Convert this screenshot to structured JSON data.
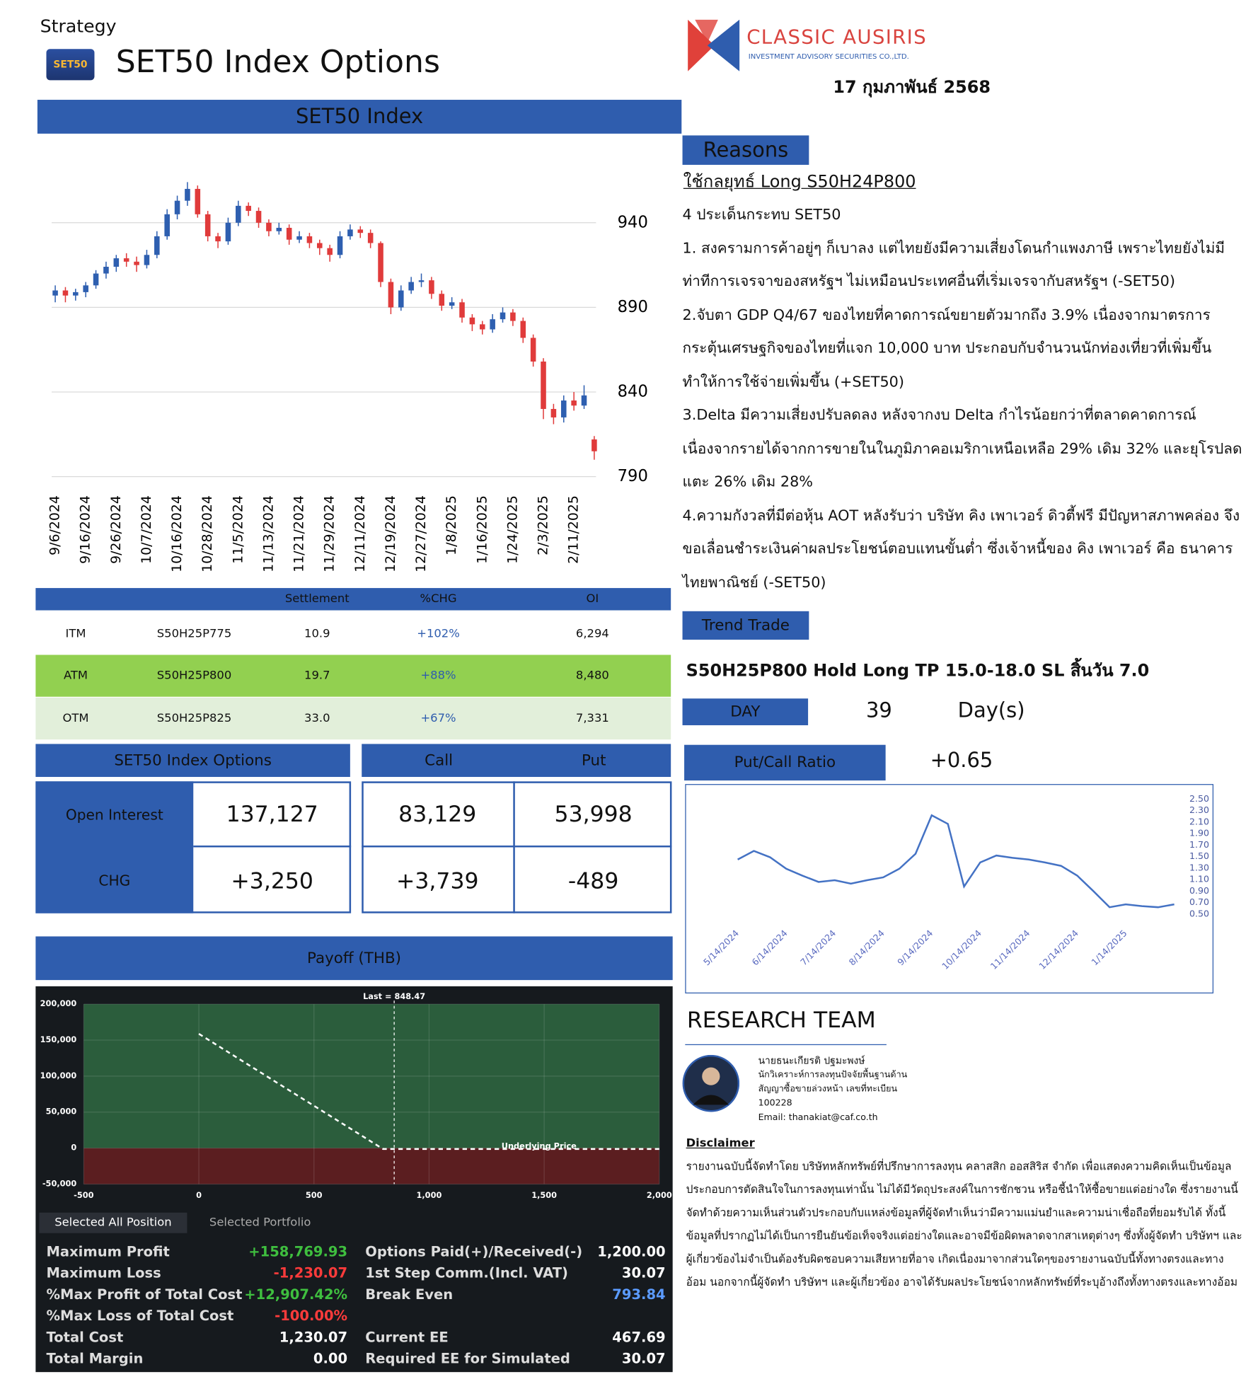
{
  "header": {
    "category": "Strategy",
    "badge": "SET50",
    "title": "SET50 Index Options",
    "company": "CLASSIC AUSIRIS",
    "company_sub": "INVESTMENT ADVISORY SECURITIES CO.,LTD.",
    "date": "17 กุมภาพันธ์ 2568"
  },
  "chart_data": [
    {
      "type": "candlestick",
      "title": "SET50 Index",
      "categories": [
        "9/6/2024",
        null,
        null,
        "9/16/2024",
        null,
        null,
        "9/26/2024",
        null,
        null,
        "10/7/2024",
        null,
        null,
        "10/16/2024",
        null,
        null,
        "10/28/2024",
        null,
        null,
        "11/5/2024",
        null,
        null,
        "11/13/2024",
        null,
        null,
        "11/21/2024",
        null,
        null,
        "11/29/2024",
        null,
        null,
        "12/11/2024",
        null,
        null,
        "12/19/2024",
        null,
        null,
        "12/27/2024",
        null,
        null,
        "1/8/2025",
        null,
        null,
        "1/16/2025",
        null,
        null,
        "1/24/2025",
        null,
        null,
        "2/3/2025",
        null,
        null,
        "2/11/2025",
        null,
        null
      ],
      "ohlc": [
        [
          897,
          903,
          893,
          900
        ],
        [
          900,
          902,
          893,
          897
        ],
        [
          897,
          901,
          894,
          899
        ],
        [
          899,
          905,
          896,
          903
        ],
        [
          903,
          912,
          901,
          910
        ],
        [
          910,
          917,
          907,
          914
        ],
        [
          914,
          921,
          911,
          919
        ],
        [
          919,
          922,
          914,
          917
        ],
        [
          917,
          920,
          911,
          915
        ],
        [
          915,
          924,
          913,
          921
        ],
        [
          921,
          935,
          919,
          932
        ],
        [
          932,
          948,
          930,
          945
        ],
        [
          945,
          956,
          942,
          953
        ],
        [
          953,
          964,
          950,
          960
        ],
        [
          960,
          962,
          943,
          945
        ],
        [
          945,
          947,
          929,
          932
        ],
        [
          932,
          934,
          925,
          929
        ],
        [
          929,
          943,
          927,
          940
        ],
        [
          940,
          953,
          938,
          950
        ],
        [
          950,
          952,
          944,
          947
        ],
        [
          947,
          949,
          937,
          940
        ],
        [
          940,
          942,
          932,
          935
        ],
        [
          935,
          940,
          933,
          937
        ],
        [
          937,
          939,
          927,
          930
        ],
        [
          930,
          935,
          928,
          932
        ],
        [
          932,
          934,
          925,
          928
        ],
        [
          928,
          930,
          921,
          925
        ],
        [
          925,
          927,
          917,
          921
        ],
        [
          921,
          935,
          919,
          932
        ],
        [
          932,
          939,
          930,
          936
        ],
        [
          936,
          938,
          931,
          934
        ],
        [
          934,
          936,
          925,
          928
        ],
        [
          928,
          929,
          902,
          905
        ],
        [
          905,
          907,
          886,
          890
        ],
        [
          890,
          903,
          888,
          900
        ],
        [
          900,
          908,
          898,
          905
        ],
        [
          905,
          910,
          902,
          906
        ],
        [
          906,
          908,
          895,
          898
        ],
        [
          898,
          900,
          888,
          891
        ],
        [
          891,
          896,
          889,
          893
        ],
        [
          893,
          895,
          881,
          884
        ],
        [
          884,
          886,
          876,
          880
        ],
        [
          880,
          882,
          874,
          877
        ],
        [
          877,
          886,
          875,
          883
        ],
        [
          883,
          890,
          881,
          887
        ],
        [
          887,
          889,
          879,
          882
        ],
        [
          882,
          884,
          869,
          872
        ],
        [
          872,
          874,
          855,
          858
        ],
        [
          858,
          860,
          824,
          830
        ],
        [
          830,
          833,
          821,
          825
        ],
        [
          825,
          838,
          822,
          835
        ],
        [
          835,
          840,
          829,
          832
        ],
        [
          832,
          844,
          830,
          838
        ],
        [
          812,
          814,
          800,
          805
        ]
      ],
      "up_color": "#2e5fb0",
      "down_color": "#e03b3b",
      "ylim": [
        785,
        970
      ],
      "yticks": [
        790,
        840,
        890,
        940
      ],
      "grid": true
    },
    {
      "type": "line",
      "color": "#4472c4",
      "categories": [
        "5/14/2024",
        null,
        null,
        "6/14/2024",
        null,
        null,
        "7/14/2024",
        null,
        null,
        "8/14/2024",
        null,
        null,
        "9/14/2024",
        null,
        null,
        "10/14/2024",
        null,
        null,
        "11/14/2024",
        null,
        null,
        "12/14/2024",
        null,
        null,
        "1/14/2025",
        null,
        null,
        null
      ],
      "values": [
        1.45,
        1.6,
        1.49,
        1.29,
        1.17,
        1.06,
        1.09,
        1.03,
        1.09,
        1.14,
        1.29,
        1.55,
        2.22,
        2.07,
        0.98,
        1.4,
        1.52,
        1.48,
        1.45,
        1.4,
        1.34,
        1.17,
        0.9,
        0.62,
        0.67,
        0.64,
        0.62,
        0.67
      ],
      "ylim": [
        0.5,
        2.5
      ],
      "yticks": [
        {
          "value": 0.5,
          "label": "0.50"
        },
        {
          "value": 0.7,
          "label": "0.70"
        },
        {
          "value": 0.9,
          "label": "0.90"
        },
        {
          "value": 1.1,
          "label": "1.10"
        },
        {
          "value": 1.3,
          "label": "1.30"
        },
        {
          "value": 1.5,
          "label": "1.50"
        },
        {
          "value": 1.7,
          "label": "1.70"
        },
        {
          "value": 1.9,
          "label": "1.90"
        },
        {
          "value": 2.1,
          "label": "2.10"
        },
        {
          "value": 2.3,
          "label": "2.30"
        },
        {
          "value": 2.5,
          "label": "2.50"
        }
      ]
    },
    {
      "type": "line",
      "color": "#ffffff",
      "x": [
        0,
        793.84,
        800,
        2000
      ],
      "values": [
        158769.93,
        0,
        -1230.07,
        -1230.07
      ],
      "xlim": [
        -500,
        2000
      ],
      "xticks": [
        -500,
        0,
        500,
        {
          "value": 1000,
          "label": "1,000"
        },
        {
          "value": 1500,
          "label": "1,500"
        },
        {
          "value": 2000,
          "label": "2,000"
        }
      ],
      "ylim": [
        -50000,
        200000
      ],
      "yticks": [
        {
          "value": -50000,
          "label": "-50,000"
        },
        0,
        {
          "value": 50000,
          "label": "50,000"
        },
        {
          "value": 100000,
          "label": "100,000"
        },
        {
          "value": 150000,
          "label": "150,000"
        },
        {
          "value": 200000,
          "label": "200,000"
        }
      ],
      "last": 848.47,
      "last_label": "Last = 848.47",
      "x_annotation": "Underlying Price",
      "profit_color": "#2b5d3c",
      "loss_color": "#5b1e20"
    }
  ],
  "options_table": {
    "columns": [
      "Settlement",
      "%CHG",
      "OI"
    ],
    "rows": [
      [
        "ITM",
        "S50H25P775",
        "10.9",
        "+102%",
        "6,294"
      ],
      [
        "ATM",
        "S50H25P800",
        "19.7",
        "+88%",
        "8,480"
      ],
      [
        "OTM",
        "S50H25P825",
        "33.0",
        "+67%",
        "7,331"
      ]
    ]
  },
  "open_interest": {
    "title": "SET50 Index Options",
    "columns": [
      "Call",
      "Put"
    ],
    "rows": [
      {
        "label": "Open Interest",
        "total": "137,127",
        "call": "83,129",
        "put": "53,998"
      },
      {
        "label": "CHG",
        "total": "+3,250",
        "call": "+3,739",
        "put": "-489"
      }
    ]
  },
  "payoff_panel": {
    "title": "Payoff (THB)",
    "tabs": [
      "Selected All Position",
      "Selected Portfolio"
    ],
    "summary_left": [
      [
        "Maximum Profit",
        "+158,769.93"
      ],
      [
        "Maximum Loss",
        "-1,230.07"
      ],
      [
        "%Max Profit of Total Cost",
        "+12,907.42%"
      ],
      [
        "%Max Loss of Total Cost",
        "-100.00%"
      ],
      [
        "Total Cost",
        "1,230.07"
      ],
      [
        "Total Margin",
        "0.00"
      ]
    ],
    "summary_right": [
      [
        "Options Paid(+)/Received(-)",
        "1,200.00"
      ],
      [
        "1st Step Comm.(Incl. VAT)",
        "30.07"
      ],
      [
        "Break Even",
        "793.84"
      ],
      [
        "Current EE",
        "467.69"
      ],
      [
        "Required EE for Simulated",
        "30.07"
      ]
    ]
  },
  "reasons": {
    "title": "Reasons",
    "strategy": "ใช้กลยุทธ์ Long S50H24P800",
    "paragraphs": [
      "4 ประเด็นกระทบ SET50",
      "1. สงครามการค้าอยู่ๆ ก็เบาลง แต่ไทยยังมีความเสี่ยงโดนกำแพงภาษี เพราะไทยยังไม่มีท่าทีการเจรจาของสหรัฐฯ ไม่เหมือนประเทศอื่นที่เริ่มเจรจากับสหรัฐฯ (-SET50)",
      "2.จับตา GDP Q4/67 ของไทยที่คาดการณ์ขยายตัวมากถึง 3.9% เนื่องจากมาตรการกระตุ้นเศรษฐกิจของไทยที่แจก 10,000 บาท ประกอบกับจำนวนนักท่องเที่ยวที่เพิ่มขึ้น ทำให้การใช้จ่ายเพิ่มขึ้น (+SET50)",
      "3.Delta มีความเสี่ยงปรับลดลง หลังจากงบ Delta กำไรน้อยกว่าที่ตลาดคาดการณ์ เนื่องจากรายได้จากการขายในในภูมิภาคอเมริกาเหนือเหลือ 29% เดิม 32% และยุโรปลดแตะ  26% เดิม 28%",
      "4.ความกังวลที่มีต่อหุ้น AOT หลังรับว่า บริษัท คิง เพาเวอร์ ดิวตี้ฟรี มีปัญหาสภาพคล่อง จึงขอเลื่อนชำระเงินค่าผลประโยชน์ตอบแทนขั้นต่ำ ซึ่งเจ้าหนี้ของ คิง เพาเวอร์ คือ ธนาคารไทยพาณิชย์ (-SET50)"
    ]
  },
  "trend_trade": {
    "title": "Trend Trade",
    "plan": "S50H25P800 Hold Long TP 15.0-18.0 SL สิ้นวัน 7.0",
    "day_label": "DAY",
    "days": "39",
    "day_unit": "Day(s)",
    "pcr_label": "Put/Call Ratio",
    "pcr": "+0.65"
  },
  "research_team": {
    "title": "RESEARCH TEAM",
    "analyst": [
      "นายธนะเกียรติ ปฐมะพงษ์",
      "นักวิเคราะห์การลงทุนปัจจัยพื้นฐานด้าน",
      "สัญญาซื้อขายล่วงหน้า เลขที่ทะเบียน",
      "100228",
      "Email: thanakiat@caf.co.th"
    ]
  },
  "disclaimer": {
    "title": "Disclaimer",
    "text": "รายงานฉบับนี้จัดทำโดย บริษัทหลักทรัพย์ที่ปรึกษาการลงทุน คลาสสิก ออสสิริส จำกัด เพื่อแสดงความคิดเห็นเป็นข้อมูลประกอบการตัดสินใจในการลงทุนเท่านั้น ไม่ได้มีวัตถุประสงค์ในการชักชวน หรือชี้นำให้ซื้อขายแต่อย่างใด ซึ่งรายงานนี้จัดทำด้วยความเห็นส่วนตัวประกอบกับแหล่งข้อมูลที่ผู้จัดทำเห็นว่ามีความแม่นยำและความน่าเชื่อถือที่ยอมรับได้ ทั้งนี้ข้อมูลที่ปรากฏไม่ได้เป็นการยืนยันข้อเท็จจริงแต่อย่างใดและอาจมีข้อผิดพลาดจากสาเหตุต่างๆ ซึ่งทั้งผู้จัดทำ บริษัทฯ และผู้เกี่ยวข้องไม่จำเป็นต้องรับผิดชอบความเสียหายที่อาจ เกิดเนื่องมาจากส่วนใดๆของรายงานฉบับนี้ทั้งทางตรงและทางอ้อม นอกจากนี้ผู้จัดทำ บริษัทฯ และผู้เกี่ยวข้อง อาจได้รับผลประโยชน์จากหลักทรัพย์ที่ระบุอ้างถึงทั้งทางตรงและทางอ้อม"
  }
}
